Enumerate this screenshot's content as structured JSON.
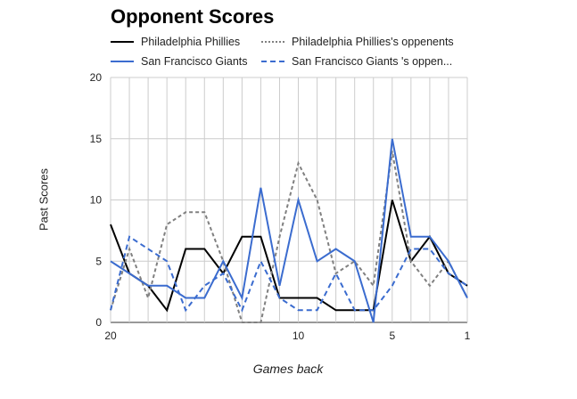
{
  "chart_data": {
    "type": "line",
    "title": "Opponent Scores",
    "xlabel": "Games back",
    "ylabel": "Past Scores",
    "x": [
      20,
      19,
      18,
      17,
      16,
      15,
      14,
      13,
      12,
      11,
      10,
      9,
      8,
      7,
      6,
      5,
      4,
      3,
      2,
      1
    ],
    "xlim": [
      20,
      1
    ],
    "x_ticks": [
      "20",
      "10",
      "5",
      "1"
    ],
    "ylim": [
      0,
      20
    ],
    "y_ticks": [
      "0",
      "5",
      "10",
      "15",
      "20"
    ],
    "grid": true,
    "legend_position": "top",
    "series": [
      {
        "name": "Philadelphia Phillies",
        "color": "#000000",
        "dash": "solid",
        "values": [
          8,
          4,
          3,
          1,
          6,
          6,
          4,
          7,
          7,
          2,
          2,
          2,
          1,
          1,
          1,
          10,
          5,
          7,
          4,
          3
        ]
      },
      {
        "name": "Philadelphia Phillies's oppenents",
        "color": "#808080",
        "dash": "dotted",
        "values": [
          1,
          6,
          2,
          8,
          9,
          9,
          5,
          0,
          0,
          7,
          13,
          10,
          4,
          5,
          3,
          14,
          5,
          3,
          5,
          2
        ]
      },
      {
        "name": "San Francisco Giants",
        "color": "#3b6ccf",
        "dash": "solid",
        "values": [
          5,
          4,
          3,
          3,
          2,
          2,
          5,
          2,
          11,
          3,
          10,
          5,
          6,
          5,
          0,
          15,
          7,
          7,
          5,
          2
        ]
      },
      {
        "name": "San Francisco Giants 's oppen...",
        "color": "#3b6ccf",
        "dash": "dashed",
        "values": [
          1,
          7,
          6,
          5,
          1,
          3,
          4,
          1,
          5,
          2,
          1,
          1,
          4,
          1,
          1,
          3,
          6,
          6,
          4,
          3
        ]
      }
    ]
  }
}
